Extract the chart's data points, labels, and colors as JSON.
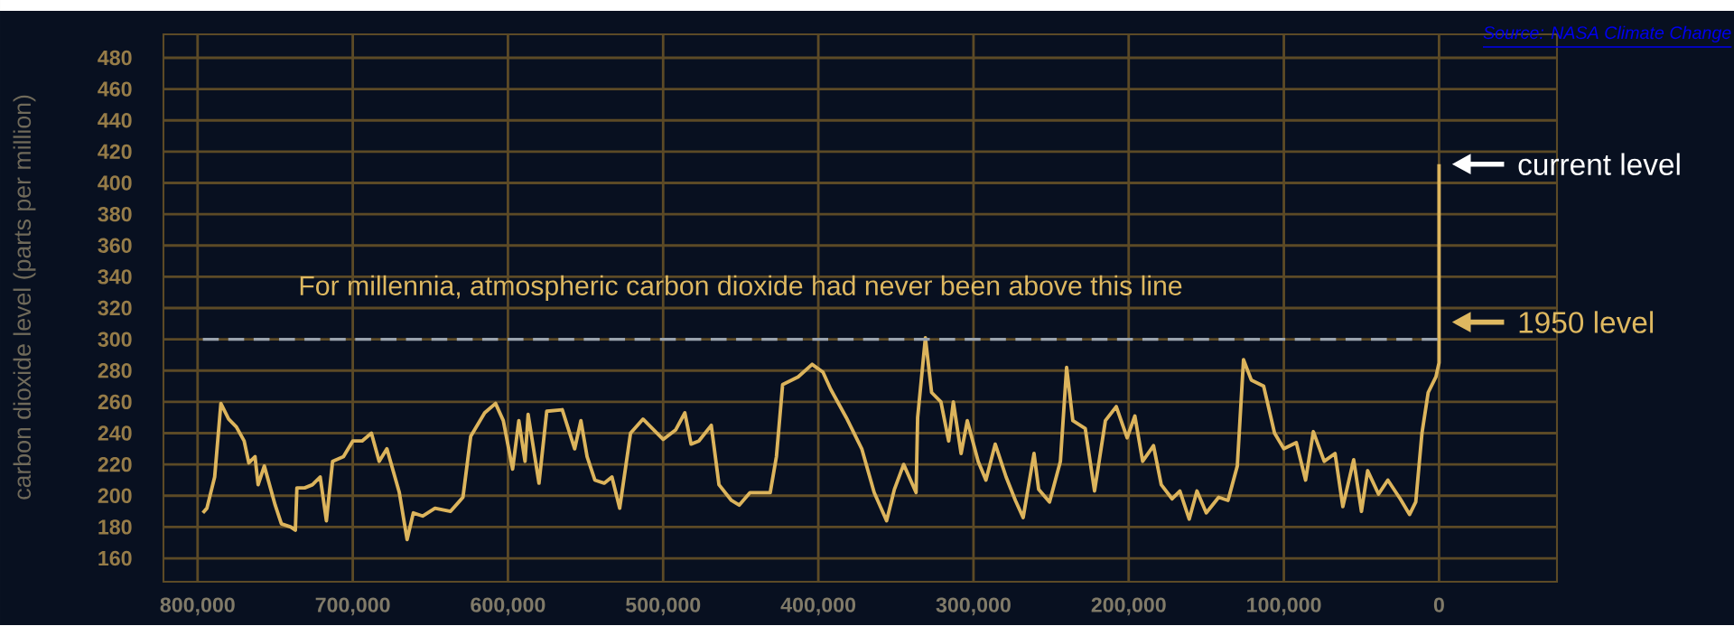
{
  "chart_data": {
    "type": "line",
    "ylabel": "carbon dioxide level (parts per million)",
    "annotations": [
      "Source: NASA Climate Change",
      {
        "text": "current level",
        "x": 0,
        "y": 412
      },
      {
        "text": "1950 level",
        "x": 0,
        "y": 311
      }
    ],
    "x": [
      796600,
      794000,
      789000,
      785000,
      780000,
      775000,
      770000,
      767000,
      763000,
      761000,
      757000,
      750000,
      746000,
      740000,
      737000,
      736000,
      731000,
      726000,
      721000,
      717000,
      713000,
      706000,
      700000,
      694000,
      688000,
      683000,
      678000,
      674000,
      670000,
      665000,
      661000,
      655000,
      647000,
      637000,
      629000,
      624000,
      615000,
      608000,
      603000,
      597000,
      593000,
      589000,
      587000,
      580000,
      575000,
      565000,
      557000,
      553000,
      549000,
      544000,
      538000,
      533000,
      528000,
      521000,
      513000,
      500000,
      492000,
      486000,
      482000,
      477000,
      469000,
      464000,
      456000,
      451000,
      444000,
      431000,
      427000,
      423000,
      413000,
      404000,
      397000,
      392000,
      382000,
      372000,
      364000,
      356000,
      351000,
      345000,
      337000,
      336000,
      331000,
      327000,
      321000,
      316000,
      313000,
      308000,
      304000,
      297000,
      292000,
      286000,
      279000,
      273000,
      268000,
      261000,
      258000,
      251000,
      244000,
      240000,
      236000,
      228000,
      222000,
      215000,
      208000,
      201000,
      196000,
      191000,
      184000,
      179000,
      172000,
      167000,
      161000,
      156000,
      150000,
      142000,
      136000,
      130000,
      126000,
      121000,
      113000,
      106000,
      100000,
      92000,
      86000,
      81000,
      74000,
      67000,
      62000,
      55000,
      50000,
      46000,
      39000,
      33000,
      25000,
      19000,
      15000,
      11000,
      7000,
      2000,
      0,
      0
    ],
    "series": [
      {
        "color": "#dcb45c",
        "line_style": "solid",
        "values": [
          189,
          192,
          212,
          259,
          249,
          244,
          235,
          221,
          225,
          207,
          219,
          194,
          182,
          180,
          178,
          205,
          205,
          207,
          212,
          184,
          222,
          225,
          235,
          235,
          240,
          222,
          230,
          216,
          202,
          172,
          189,
          187,
          192,
          190,
          199,
          238,
          253,
          259,
          248,
          217,
          248,
          222,
          252,
          208,
          254,
          255,
          230,
          248,
          225,
          210,
          208,
          212,
          192,
          240,
          249,
          236,
          242,
          253,
          233,
          235,
          245,
          207,
          197,
          194,
          202,
          202,
          225,
          271,
          276,
          284,
          279,
          268,
          250,
          230,
          202,
          184,
          204,
          220,
          202,
          250,
          301,
          266,
          260,
          235,
          260,
          227,
          248,
          222,
          210,
          233,
          212,
          197,
          186,
          227,
          204,
          196,
          222,
          282,
          248,
          243,
          203,
          248,
          257,
          237,
          251,
          222,
          232,
          207,
          198,
          203,
          185,
          203,
          189,
          199,
          197,
          219,
          287,
          274,
          270,
          240,
          230,
          234,
          210,
          241,
          222,
          227,
          193,
          223,
          190,
          216,
          201,
          210,
          198,
          188,
          196,
          240,
          266,
          276,
          285,
          412
        ]
      }
    ],
    "xlim": [
      822000,
      -76000
    ],
    "xticks": [
      {
        "value": 800000,
        "label": "800,000"
      },
      {
        "value": 700000,
        "label": "700,000"
      },
      {
        "value": 600000,
        "label": "600,000"
      },
      {
        "value": 500000,
        "label": "500,000"
      },
      {
        "value": 400000,
        "label": "400,000"
      },
      {
        "value": 300000,
        "label": "300,000"
      },
      {
        "value": 200000,
        "label": "200,000"
      },
      {
        "value": 100000,
        "label": "100,000"
      },
      0
    ],
    "ylim": [
      145,
      495
    ],
    "yticks": [
      160,
      180,
      200,
      220,
      240,
      260,
      280,
      300,
      320,
      340,
      360,
      380,
      400,
      420,
      440,
      460,
      480
    ],
    "ref_lines": [
      {
        "axis": "y",
        "value": 300,
        "label": "For millennia, atmospheric carbon dioxide had never been above this line",
        "color": "#9aa3ad",
        "line_style": "dashed"
      }
    ],
    "grid": true,
    "marker": "none"
  }
}
